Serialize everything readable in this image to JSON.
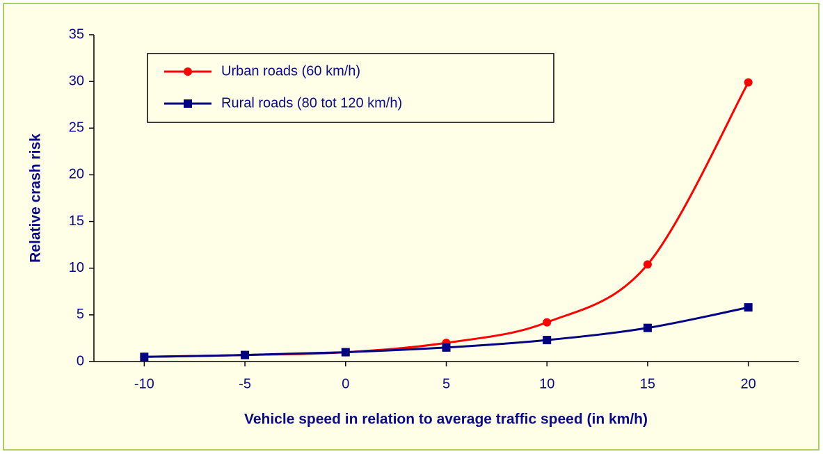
{
  "chart_data": {
    "type": "line",
    "x": [
      -10,
      -5,
      0,
      5,
      10,
      15,
      20
    ],
    "series": [
      {
        "name": "Urban roads (60 km/h)",
        "color": "#ff0000",
        "marker": "circle",
        "values": [
          0.5,
          0.7,
          1.0,
          2.0,
          4.2,
          10.4,
          29.9
        ]
      },
      {
        "name": "Rural roads (80 tot 120 km/h)",
        "color": "#000080",
        "marker": "square",
        "values": [
          0.5,
          0.7,
          1.0,
          1.5,
          2.3,
          3.6,
          5.8
        ]
      }
    ],
    "x_label": "Vehicle speed in relation to average traffic speed (in km/h)",
    "y_label": "Relative crash risk",
    "xlim": [
      -12.5,
      22.5
    ],
    "xticks": [
      -10,
      -5,
      0,
      5,
      10,
      15,
      20
    ],
    "ylim": [
      0,
      35
    ],
    "yticks": [
      0,
      5,
      10,
      15,
      20,
      25,
      30,
      35
    ],
    "smooth": true,
    "legend": "top-left"
  }
}
